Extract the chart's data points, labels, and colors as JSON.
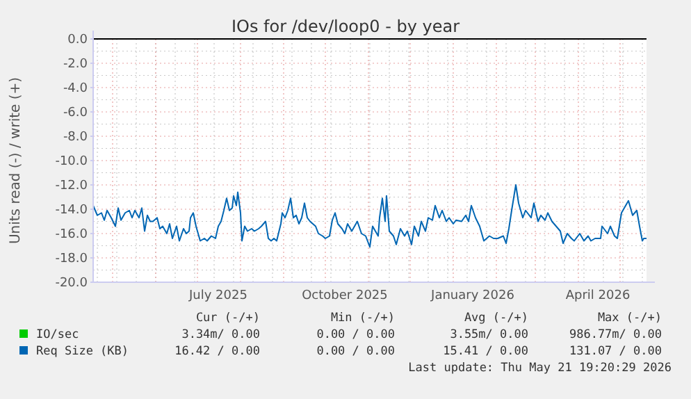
{
  "chart_data": {
    "type": "line",
    "title": "IOs for /dev/loop0 - by year",
    "ylabel": "Units read (-) / write (+)",
    "xlim": [
      "2025-04-17",
      "2026-05-20"
    ],
    "xticks": [
      {
        "value": "2025-07-16",
        "label": "July 2025"
      },
      {
        "value": "2025-10-15",
        "label": "October 2025"
      },
      {
        "value": "2026-01-15",
        "label": "January 2026"
      },
      {
        "value": "2026-04-15",
        "label": "April 2026"
      }
    ],
    "ylim": [
      -20,
      0
    ],
    "yticks": [
      {
        "value": 0,
        "label": "0.0"
      },
      {
        "value": -2,
        "label": "-2.0"
      },
      {
        "value": -4,
        "label": "-4.0"
      },
      {
        "value": -6,
        "label": "-6.0"
      },
      {
        "value": -8,
        "label": "-8.0"
      },
      {
        "value": -10,
        "label": "-10.0"
      },
      {
        "value": -12,
        "label": "-12.0"
      },
      {
        "value": -14,
        "label": "-14.0"
      },
      {
        "value": -16,
        "label": "-16.0"
      },
      {
        "value": -18,
        "label": "-18.0"
      },
      {
        "value": -20,
        "label": "-20.0"
      }
    ],
    "grid": true,
    "legend": "bottom",
    "ref_lines": [
      {
        "axis": "y",
        "value": 0,
        "color": "#000000"
      }
    ],
    "series": [
      {
        "name": "IO/sec",
        "color": "#00cc00"
      },
      {
        "name": "Req Size (KB)",
        "color": "#0066b3",
        "x": [
          "2025-04-17",
          "2025-04-20",
          "2025-04-23",
          "2025-04-25",
          "2025-04-27",
          "2025-04-30",
          "2025-05-03",
          "2025-05-05",
          "2025-05-07",
          "2025-05-10",
          "2025-05-13",
          "2025-05-15",
          "2025-05-17",
          "2025-05-19",
          "2025-05-20",
          "2025-05-22",
          "2025-05-24",
          "2025-05-26",
          "2025-05-28",
          "2025-05-30",
          "2025-06-02",
          "2025-06-04",
          "2025-06-06",
          "2025-06-09",
          "2025-06-11",
          "2025-06-13",
          "2025-06-16",
          "2025-06-18",
          "2025-06-21",
          "2025-06-23",
          "2025-06-25",
          "2025-06-26",
          "2025-06-28",
          "2025-06-30",
          "2025-07-03",
          "2025-07-06",
          "2025-07-08",
          "2025-07-11",
          "2025-07-14",
          "2025-07-16",
          "2025-07-18",
          "2025-07-20",
          "2025-07-22",
          "2025-07-24",
          "2025-07-26",
          "2025-07-27",
          "2025-07-29",
          "2025-07-30",
          "2025-08-01",
          "2025-08-02",
          "2025-08-04",
          "2025-08-06",
          "2025-08-09",
          "2025-08-11",
          "2025-08-14",
          "2025-08-16",
          "2025-08-19",
          "2025-08-21",
          "2025-08-23",
          "2025-08-25",
          "2025-08-27",
          "2025-08-30",
          "2025-08-31",
          "2025-09-02",
          "2025-09-04",
          "2025-09-06",
          "2025-09-08",
          "2025-09-10",
          "2025-09-12",
          "2025-09-14",
          "2025-09-16",
          "2025-09-18",
          "2025-09-20",
          "2025-09-22",
          "2025-09-24",
          "2025-09-26",
          "2025-09-29",
          "2025-10-01",
          "2025-10-04",
          "2025-10-06",
          "2025-10-08",
          "2025-10-10",
          "2025-10-13",
          "2025-10-15",
          "2025-10-17",
          "2025-10-20",
          "2025-10-24",
          "2025-10-27",
          "2025-10-30",
          "2025-11-02",
          "2025-11-04",
          "2025-11-08",
          "2025-11-09",
          "2025-11-11",
          "2025-11-13",
          "2025-11-14",
          "2025-11-16",
          "2025-11-19",
          "2025-11-21",
          "2025-11-24",
          "2025-11-27",
          "2025-11-29",
          "2025-12-02",
          "2025-12-04",
          "2025-12-07",
          "2025-12-09",
          "2025-12-12",
          "2025-12-14",
          "2025-12-17",
          "2025-12-19",
          "2025-12-22",
          "2025-12-24",
          "2025-12-27",
          "2025-12-29",
          "2026-01-01",
          "2026-01-03",
          "2026-01-07",
          "2026-01-10",
          "2026-01-12",
          "2026-01-14",
          "2026-01-17",
          "2026-01-20",
          "2026-01-23",
          "2026-01-27",
          "2026-01-30",
          "2026-02-02",
          "2026-02-06",
          "2026-02-08",
          "2026-02-10",
          "2026-02-12",
          "2026-02-15",
          "2026-02-17",
          "2026-02-20",
          "2026-02-22",
          "2026-02-26",
          "2026-02-28",
          "2026-03-03",
          "2026-03-05",
          "2026-03-08",
          "2026-03-10",
          "2026-03-13",
          "2026-03-16",
          "2026-03-19",
          "2026-03-21",
          "2026-03-24",
          "2026-03-27",
          "2026-03-29",
          "2026-04-02",
          "2026-04-05",
          "2026-04-08",
          "2026-04-10",
          "2026-04-13",
          "2026-04-17",
          "2026-04-18",
          "2026-04-22",
          "2026-04-24",
          "2026-04-27",
          "2026-04-29",
          "2026-05-02",
          "2026-05-04",
          "2026-05-07",
          "2026-05-10",
          "2026-05-13",
          "2026-05-15",
          "2026-05-17",
          "2026-05-18",
          "2026-05-20"
        ],
        "values": [
          -13.7,
          -14.5,
          -14.3,
          -14.9,
          -14.1,
          -14.7,
          -15.4,
          -13.9,
          -14.9,
          -14.3,
          -14.1,
          -14.7,
          -14.1,
          -14.5,
          -14.7,
          -13.9,
          -15.8,
          -14.5,
          -15.0,
          -15.0,
          -14.7,
          -15.6,
          -15.4,
          -16.0,
          -15.2,
          -16.4,
          -15.4,
          -16.6,
          -15.6,
          -16.0,
          -15.8,
          -14.7,
          -14.3,
          -15.4,
          -16.6,
          -16.4,
          -16.6,
          -16.2,
          -16.4,
          -15.4,
          -15.0,
          -14.1,
          -13.1,
          -14.1,
          -13.9,
          -12.9,
          -13.7,
          -12.6,
          -14.3,
          -16.6,
          -15.4,
          -15.8,
          -15.6,
          -15.8,
          -15.6,
          -15.4,
          -15.0,
          -16.4,
          -16.6,
          -16.4,
          -16.6,
          -15.2,
          -14.3,
          -14.7,
          -14.1,
          -13.1,
          -14.7,
          -14.5,
          -15.2,
          -14.7,
          -13.5,
          -14.7,
          -15.0,
          -15.2,
          -15.4,
          -16.0,
          -16.2,
          -16.4,
          -16.2,
          -14.9,
          -14.3,
          -15.2,
          -15.6,
          -16.0,
          -15.2,
          -15.8,
          -15.0,
          -16.0,
          -16.2,
          -17.1,
          -15.4,
          -16.2,
          -14.7,
          -13.1,
          -15.0,
          -12.9,
          -15.8,
          -16.2,
          -16.9,
          -15.6,
          -16.2,
          -15.8,
          -16.9,
          -15.4,
          -16.2,
          -15.0,
          -15.8,
          -14.7,
          -14.9,
          -13.7,
          -14.7,
          -14.1,
          -15.0,
          -14.7,
          -15.2,
          -14.9,
          -15.0,
          -14.5,
          -15.0,
          -13.7,
          -14.7,
          -15.4,
          -16.6,
          -16.2,
          -16.4,
          -16.4,
          -16.2,
          -16.8,
          -15.6,
          -14.1,
          -12.0,
          -13.5,
          -14.7,
          -14.1,
          -14.7,
          -13.5,
          -15.0,
          -14.5,
          -14.9,
          -14.3,
          -15.0,
          -15.4,
          -15.8,
          -16.8,
          -16.0,
          -16.4,
          -16.6,
          -16.0,
          -16.6,
          -16.2,
          -16.6,
          -16.4,
          -16.4,
          -15.4,
          -16.0,
          -15.4,
          -16.2,
          -16.4,
          -14.3,
          -13.9,
          -13.3,
          -14.5,
          -14.1,
          -15.4,
          -16.6,
          -16.4,
          -16.4
        ]
      }
    ],
    "annotations": [
      "Cur (-/+)",
      "Min (-/+)",
      "Avg (-/+)",
      "Max (-/+)",
      "3.34m/ 0.00",
      "0.00 / 0.00",
      "3.55m/ 0.00",
      "986.77m/ 0.00",
      "16.42 / 0.00",
      "0.00 / 0.00",
      "15.41 / 0.00",
      "131.07 / 0.00",
      "Last update: Thu May 21 19:20:29 2026"
    ]
  }
}
